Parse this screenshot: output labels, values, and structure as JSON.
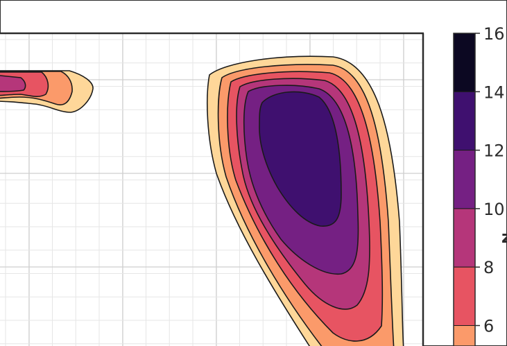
{
  "chart_data": {
    "type": "contour",
    "title": "",
    "xlabel": "",
    "ylabel": "",
    "grid": true,
    "colormap": "magma",
    "colorbar": {
      "ticks": [
        6,
        8,
        10,
        12,
        14,
        16
      ],
      "tick_labels": [
        "6",
        "8",
        "10",
        "12",
        "14",
        "16"
      ],
      "levels": [
        {
          "from": 14,
          "to": 16,
          "color": "#0c0822"
        },
        {
          "from": 12,
          "to": 14,
          "color": "#3f106f"
        },
        {
          "from": 10,
          "to": 12,
          "color": "#752083"
        },
        {
          "from": 8,
          "to": 10,
          "color": "#b5367a"
        },
        {
          "from": 6,
          "to": 8,
          "color": "#e75462"
        },
        {
          "from": 5,
          "to": 6,
          "color": "#fb9a6a"
        }
      ]
    },
    "contour_fill_levels": [
      {
        "level": 4,
        "color": "#fed799"
      },
      {
        "level": 5,
        "color": "#fb9a6a"
      },
      {
        "level": 6,
        "color": "#e75462"
      },
      {
        "level": 8,
        "color": "#b5367a"
      },
      {
        "level": 10,
        "color": "#752083"
      },
      {
        "level": 12,
        "color": "#3f106f"
      }
    ],
    "regions": [
      {
        "name": "right-lobe",
        "peak_level": 12
      },
      {
        "name": "left-lobe",
        "peak_level": 8
      }
    ]
  }
}
